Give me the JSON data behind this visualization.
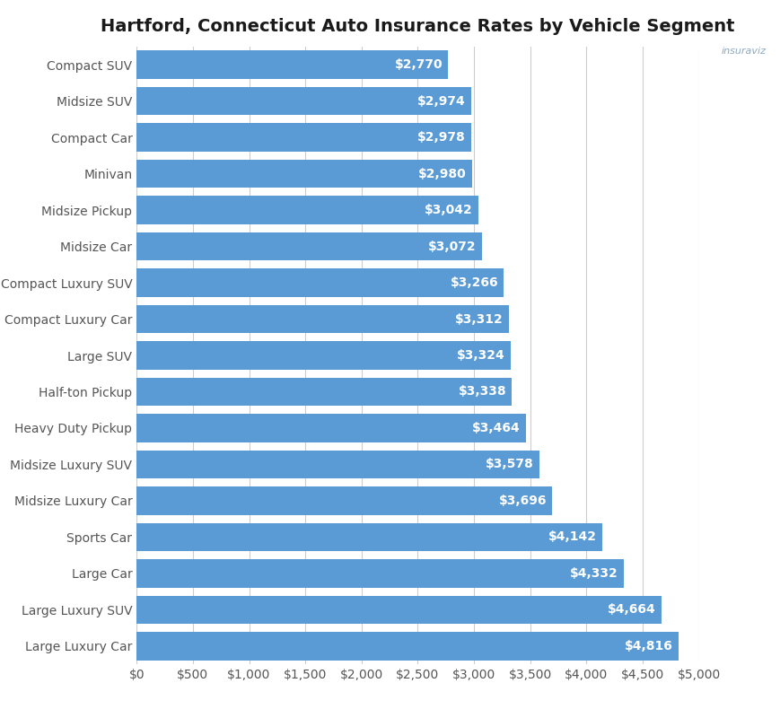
{
  "title": "Hartford, Connecticut Auto Insurance Rates by Vehicle Segment",
  "categories": [
    "Large Luxury Car",
    "Large Luxury SUV",
    "Large Car",
    "Sports Car",
    "Midsize Luxury Car",
    "Midsize Luxury SUV",
    "Heavy Duty Pickup",
    "Half-ton Pickup",
    "Large SUV",
    "Compact Luxury Car",
    "Compact Luxury SUV",
    "Midsize Car",
    "Midsize Pickup",
    "Minivan",
    "Compact Car",
    "Midsize SUV",
    "Compact SUV"
  ],
  "values": [
    4816,
    4664,
    4332,
    4142,
    3696,
    3578,
    3464,
    3338,
    3324,
    3312,
    3266,
    3072,
    3042,
    2980,
    2978,
    2974,
    2770
  ],
  "bar_color": "#5b9bd5",
  "label_color": "#ffffff",
  "background_color": "#ffffff",
  "grid_color": "#cccccc",
  "title_color": "#1a1a1a",
  "tick_label_color": "#555555",
  "xlim": [
    0,
    5000
  ],
  "xticks": [
    0,
    500,
    1000,
    1500,
    2000,
    2500,
    3000,
    3500,
    4000,
    4500,
    5000
  ],
  "xtick_labels": [
    "$0",
    "$500",
    "$1,000",
    "$1,500",
    "$2,000",
    "$2,500",
    "$3,000",
    "$3,500",
    "$4,000",
    "$4,500",
    "$5,000"
  ],
  "title_fontsize": 14,
  "label_fontsize": 10,
  "tick_fontsize": 10,
  "bar_height": 0.78
}
